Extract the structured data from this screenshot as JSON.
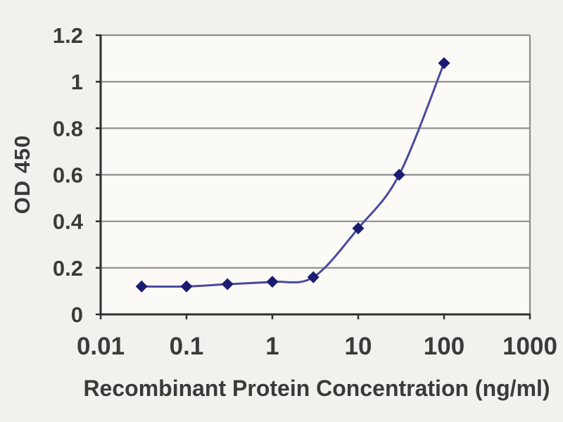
{
  "chart_data": {
    "type": "line",
    "title": "",
    "xlabel": "Recombinant Protein Concentration (ng/ml)",
    "ylabel": "OD 450",
    "x_scale": "log",
    "xlim": [
      0.01,
      1000
    ],
    "ylim": [
      0,
      1.2
    ],
    "grid": "horizontal",
    "legend": "none",
    "x_ticks": [
      {
        "value": 0.01,
        "label": "0.01"
      },
      {
        "value": 0.1,
        "label": "0.1"
      },
      {
        "value": 1,
        "label": "1"
      },
      {
        "value": 10,
        "label": "10"
      },
      {
        "value": 100,
        "label": "100"
      },
      {
        "value": 1000,
        "label": "1000"
      }
    ],
    "y_ticks": [
      {
        "value": 0,
        "label": "0"
      },
      {
        "value": 0.2,
        "label": "0.2"
      },
      {
        "value": 0.4,
        "label": "0.4"
      },
      {
        "value": 0.6,
        "label": "0.6"
      },
      {
        "value": 0.8,
        "label": "0.8"
      },
      {
        "value": 1,
        "label": "1"
      },
      {
        "value": 1.2,
        "label": "1.2"
      }
    ],
    "series": [
      {
        "marker": "diamond",
        "points": [
          {
            "x": 0.03,
            "y": 0.12
          },
          {
            "x": 0.1,
            "y": 0.12
          },
          {
            "x": 0.3,
            "y": 0.13
          },
          {
            "x": 1,
            "y": 0.14
          },
          {
            "x": 3,
            "y": 0.16
          },
          {
            "x": 10,
            "y": 0.37
          },
          {
            "x": 30,
            "y": 0.6
          },
          {
            "x": 100,
            "y": 1.08
          }
        ]
      }
    ]
  },
  "colors": {
    "background": "#f3f1ed",
    "plot_fill": "#fbfaf7",
    "gridline": "#8c8c8c",
    "axis": "#2e2e2e",
    "tick_text": "#3a3a3a",
    "line": "#4a4a9e",
    "marker": "#1b1b70"
  }
}
